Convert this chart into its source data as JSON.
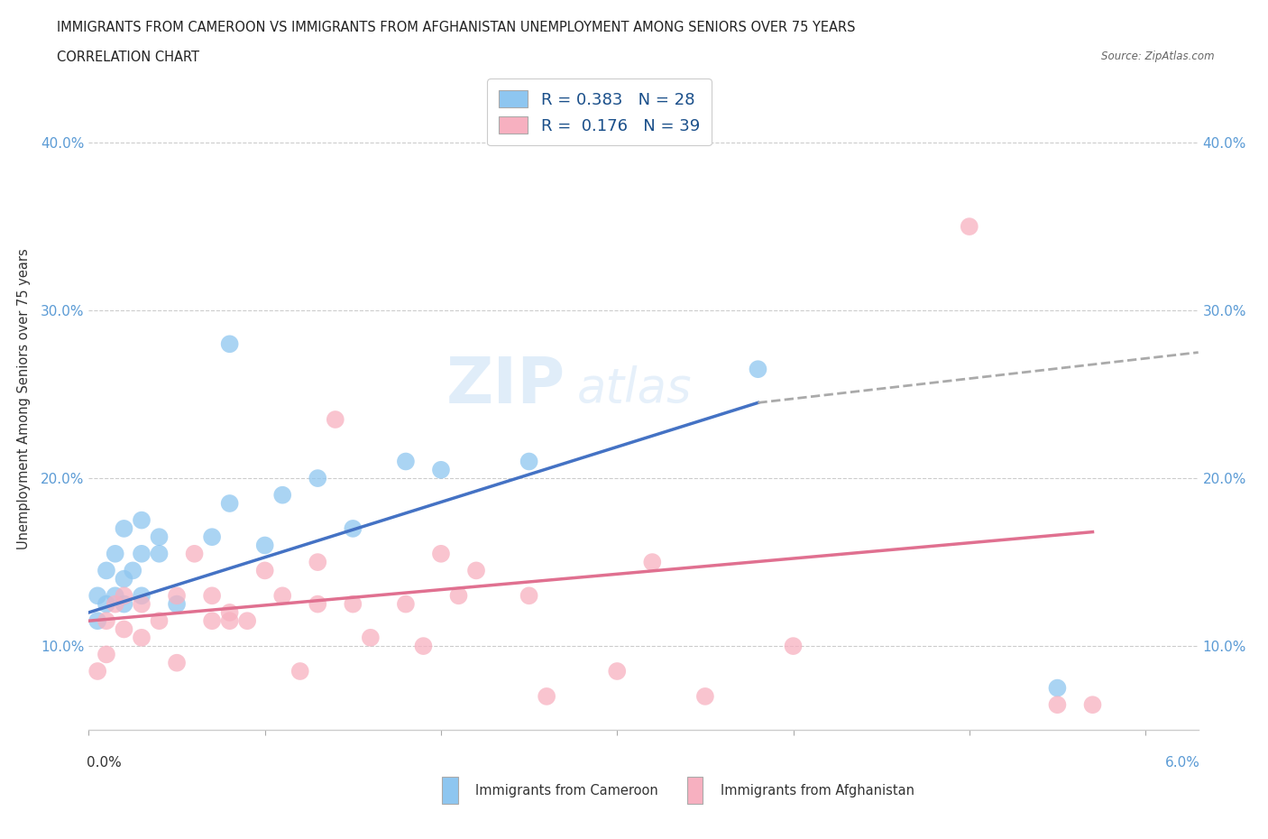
{
  "title_line1": "IMMIGRANTS FROM CAMEROON VS IMMIGRANTS FROM AFGHANISTAN UNEMPLOYMENT AMONG SENIORS OVER 75 YEARS",
  "title_line2": "CORRELATION CHART",
  "source": "Source: ZipAtlas.com",
  "ylabel": "Unemployment Among Seniors over 75 years",
  "xlim": [
    0.0,
    0.063
  ],
  "ylim": [
    0.05,
    0.445
  ],
  "yticks": [
    0.1,
    0.2,
    0.3,
    0.4
  ],
  "ytick_labels": [
    "10.0%",
    "20.0%",
    "30.0%",
    "40.0%"
  ],
  "xticks": [
    0.0,
    0.01,
    0.02,
    0.03,
    0.04,
    0.05,
    0.06
  ],
  "legend_r_cameroon": "R = 0.383",
  "legend_n_cameroon": "N = 28",
  "legend_r_afghanistan": "R =  0.176",
  "legend_n_afghanistan": "N = 39",
  "color_cameroon": "#8ec6f0",
  "color_afghanistan": "#f7b0c0",
  "color_trend_cameroon": "#4472c4",
  "color_trend_afghanistan": "#e07090",
  "color_trend_dashed": "#aaaaaa",
  "watermark_zip": "ZIP",
  "watermark_atlas": "atlas",
  "cameroon_x": [
    0.0005,
    0.0005,
    0.001,
    0.001,
    0.0015,
    0.0015,
    0.002,
    0.002,
    0.002,
    0.0025,
    0.003,
    0.003,
    0.003,
    0.004,
    0.004,
    0.005,
    0.007,
    0.008,
    0.008,
    0.01,
    0.011,
    0.013,
    0.015,
    0.018,
    0.02,
    0.025,
    0.038,
    0.055
  ],
  "cameroon_y": [
    0.115,
    0.13,
    0.125,
    0.145,
    0.13,
    0.155,
    0.125,
    0.14,
    0.17,
    0.145,
    0.13,
    0.155,
    0.175,
    0.155,
    0.165,
    0.125,
    0.165,
    0.185,
    0.28,
    0.16,
    0.19,
    0.2,
    0.17,
    0.21,
    0.205,
    0.21,
    0.265,
    0.075
  ],
  "afghanistan_x": [
    0.0005,
    0.001,
    0.001,
    0.0015,
    0.002,
    0.002,
    0.003,
    0.003,
    0.004,
    0.005,
    0.005,
    0.006,
    0.007,
    0.007,
    0.008,
    0.008,
    0.009,
    0.01,
    0.011,
    0.012,
    0.013,
    0.013,
    0.014,
    0.015,
    0.016,
    0.018,
    0.019,
    0.02,
    0.021,
    0.022,
    0.025,
    0.026,
    0.03,
    0.032,
    0.035,
    0.04,
    0.05,
    0.055,
    0.057
  ],
  "afghanistan_y": [
    0.085,
    0.095,
    0.115,
    0.125,
    0.11,
    0.13,
    0.105,
    0.125,
    0.115,
    0.09,
    0.13,
    0.155,
    0.115,
    0.13,
    0.115,
    0.12,
    0.115,
    0.145,
    0.13,
    0.085,
    0.15,
    0.125,
    0.235,
    0.125,
    0.105,
    0.125,
    0.1,
    0.155,
    0.13,
    0.145,
    0.13,
    0.07,
    0.085,
    0.15,
    0.07,
    0.1,
    0.35,
    0.065,
    0.065
  ],
  "trend_cam_x0": 0.0,
  "trend_cam_y0": 0.12,
  "trend_cam_x1": 0.038,
  "trend_cam_y1": 0.245,
  "trend_cam_dash_x1": 0.063,
  "trend_cam_dash_y1": 0.275,
  "trend_afg_x0": 0.0,
  "trend_afg_y0": 0.115,
  "trend_afg_x1": 0.057,
  "trend_afg_y1": 0.168
}
